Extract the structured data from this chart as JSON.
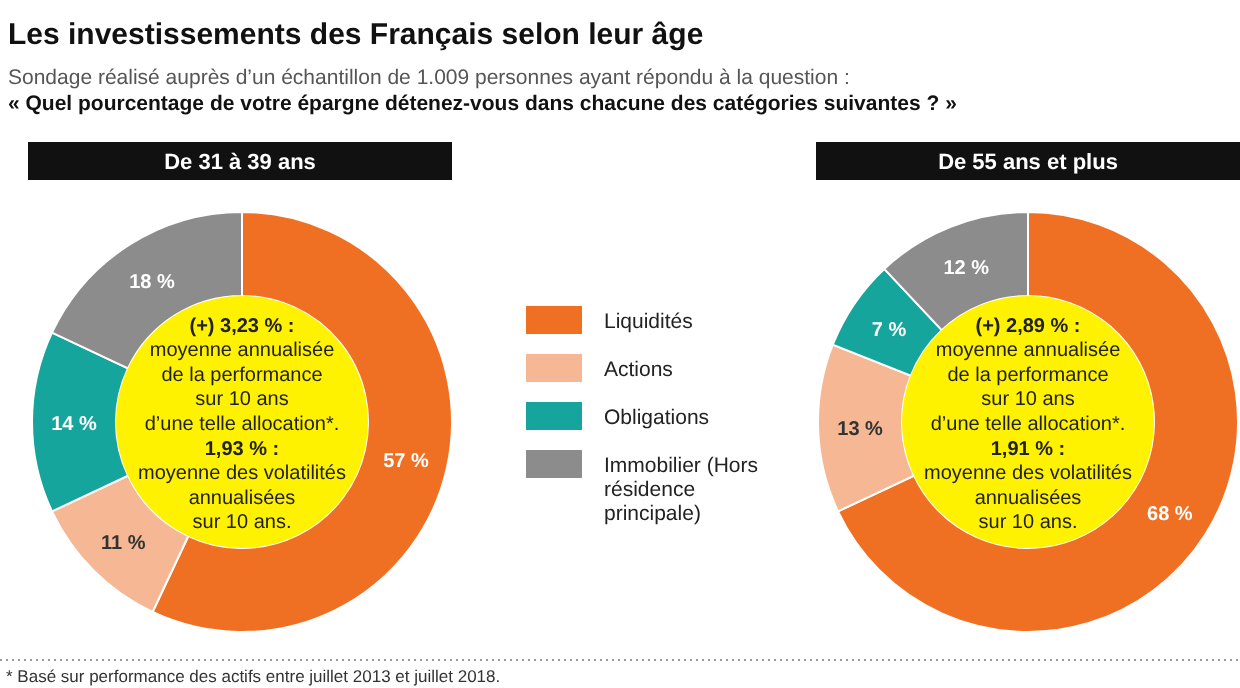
{
  "chart_data": [
    {
      "type": "donut",
      "title": "Les investissements des Français selon leur âge",
      "subtitle": "Sondage réalisé auprès d’un échantillon de 1.009 personnes ayant répondu à la question :\n« Quel pourcentage de votre épargne détenez-vous dans chacune des catégories suivantes ? »",
      "categories": [
        "Liquidités",
        "Actions",
        "Obligations",
        "Immobilier (Hors résidence principale)"
      ],
      "values": [
        57,
        11,
        14,
        18
      ],
      "value_labels": [
        "57 %",
        "11 %",
        "14 %",
        "18 %"
      ],
      "colors": [
        "#f07023",
        "#f6b894",
        "#16a59c",
        "#8c8c8c"
      ],
      "legend": "right",
      "annotations": [
        "De 31 à 39 ans",
        "(+) 3,23 % :\nmoyenne annualisée\nde la performance\nsur 10 ans\nd’une telle allocation*.\n1,93 % :\nmoyenne des volatilités\nannualisées\nsur 10 ans.",
        "* Basé sur performance des actifs entre juillet 2013 et juillet 2018."
      ]
    },
    {
      "type": "donut",
      "categories": [
        null,
        null,
        null,
        null
      ],
      "values": [
        68,
        13,
        7,
        12
      ],
      "value_labels": [
        "68 %",
        "13 %",
        "7 %",
        "12 %"
      ],
      "colors": [
        "#f07023",
        "#f6b894",
        "#16a59c",
        "#8c8c8c"
      ],
      "annotations": [
        "De 55 ans et plus",
        "(+) 2,89 % :\nmoyenne annualisée\nde la performance\nsur 10 ans\nd’une telle allocation*.\n1,91 % :\nmoyenne des volatilités\nannualisées\nsur 10 ans."
      ]
    }
  ]
}
